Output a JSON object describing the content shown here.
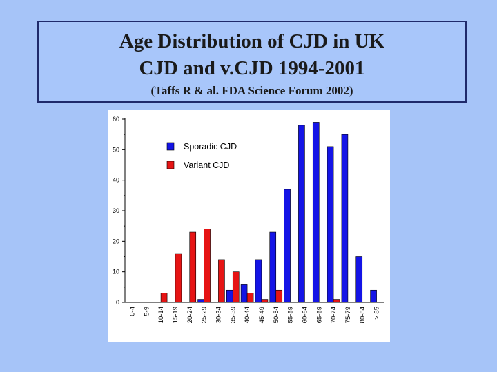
{
  "slide": {
    "title_line1": "Age Distribution of CJD in UK",
    "title_line2": "CJD and v.CJD 1994-2001",
    "citation": "(Taffs R & al.  FDA Science Forum 2002)"
  },
  "chart_data": {
    "type": "bar",
    "categories": [
      "0-4",
      "5-9",
      "10-14",
      "15-19",
      "20-24",
      "25-29",
      "30-34",
      "35-39",
      "40-44",
      "45-49",
      "50-54",
      "55-59",
      "60-64",
      "65-69",
      "70-74",
      "75-79",
      "80-84",
      "> 85"
    ],
    "series": [
      {
        "name": "Sporadic CJD",
        "color": "#1414e6",
        "values": [
          0,
          0,
          0,
          0,
          0,
          1,
          0,
          4,
          6,
          14,
          23,
          37,
          58,
          59,
          51,
          55,
          15,
          4
        ]
      },
      {
        "name": "Variant CJD",
        "color": "#e61414",
        "values": [
          0,
          0,
          3,
          16,
          23,
          24,
          14,
          10,
          3,
          1,
          4,
          0,
          0,
          0,
          1,
          0,
          0,
          0
        ]
      }
    ],
    "ylim": [
      0,
      60
    ],
    "yticks": [
      0,
      10,
      20,
      30,
      40,
      50,
      60
    ],
    "legend_position": "top-left",
    "grid": false
  }
}
